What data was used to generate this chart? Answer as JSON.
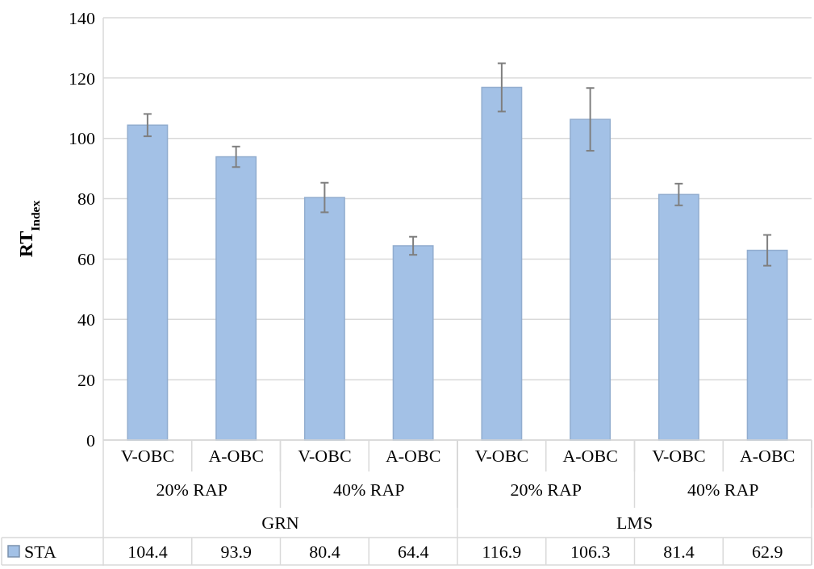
{
  "chart_data": {
    "type": "bar",
    "ylabel": "RT$_{Index}$",
    "categories": [
      "V-OBC",
      "A-OBC",
      "V-OBC",
      "A-OBC",
      "V-OBC",
      "A-OBC",
      "V-OBC",
      "A-OBC"
    ],
    "annotations": [
      "20% RAP",
      "40% RAP",
      "20% RAP",
      "40% RAP",
      "GRN",
      "LMS"
    ],
    "series": [
      {
        "name": "STA",
        "color": "#a3c1e6",
        "values": [
          104.4,
          93.9,
          80.4,
          64.4,
          116.9,
          106.3,
          81.4,
          62.9
        ],
        "errors": [
          3.7,
          3.4,
          4.9,
          3.0,
          8.0,
          10.4,
          3.6,
          5.1
        ]
      }
    ],
    "ylim": [
      0,
      140
    ],
    "yticks": [
      0,
      20,
      40,
      60,
      80,
      100,
      120,
      140
    ],
    "grid": "y",
    "data_labels": true,
    "legend": "bottom"
  }
}
